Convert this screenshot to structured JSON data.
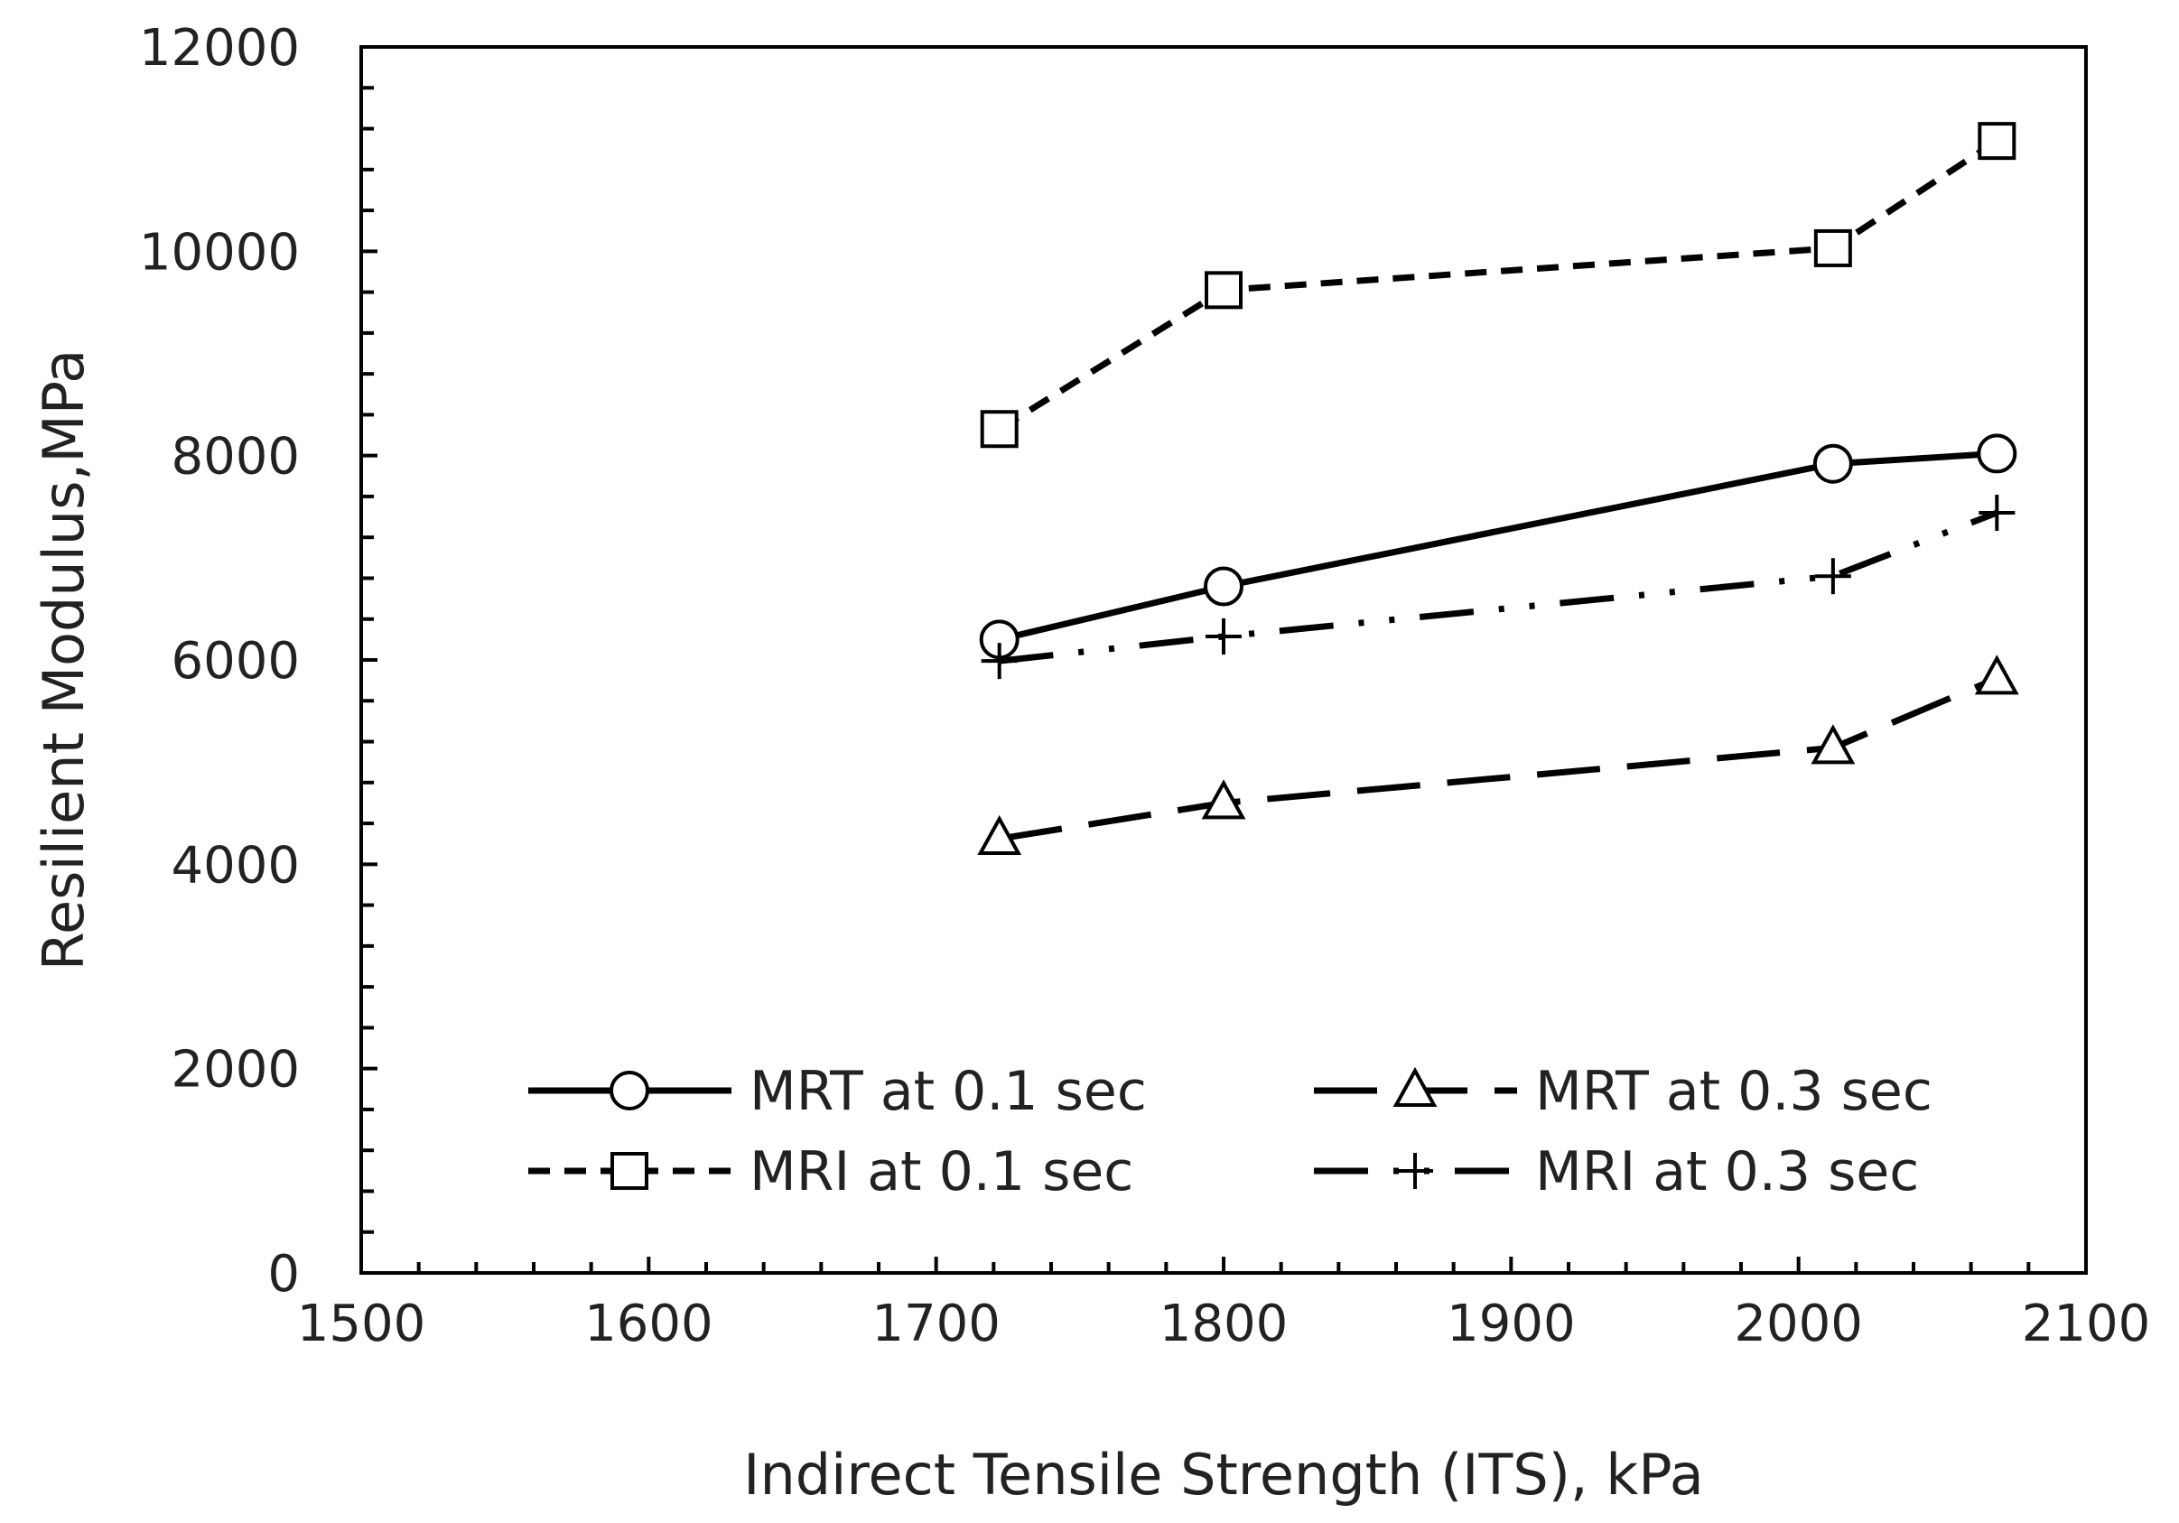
{
  "chart_data": {
    "type": "line",
    "title": "",
    "xlabel": "Indirect Tensile Strength (ITS), kPa",
    "ylabel": "Resilient Modulus,MPa",
    "xlim": [
      1500,
      2100
    ],
    "ylim": [
      0,
      12000
    ],
    "x_ticks": [
      "1500",
      "1600",
      "1700",
      "1800",
      "1900",
      "2000",
      "2100"
    ],
    "y_ticks": [
      "0",
      "2000",
      "4000",
      "6000",
      "8000",
      "10000",
      "12000"
    ],
    "grid": false,
    "legend_position": "bottom-inside",
    "x": [
      1722,
      1800,
      2012,
      2069
    ],
    "series": [
      {
        "name": "MRT at 0.1 sec",
        "marker": "circle",
        "line": "solid",
        "values": [
          6200,
          6720,
          7920,
          8020
        ]
      },
      {
        "name": "MRT at 0.3 sec",
        "marker": "triangle",
        "line": "long-dash",
        "values": [
          4250,
          4600,
          5140,
          5820
        ]
      },
      {
        "name": "MRI at 0.1 sec",
        "marker": "square",
        "line": "short-dash",
        "values": [
          8260,
          9620,
          10030,
          11080
        ]
      },
      {
        "name": "MRI at 0.3 sec",
        "marker": "plus",
        "line": "dash-dot-dot",
        "values": [
          5990,
          6230,
          6820,
          7440
        ]
      }
    ],
    "color": "#000000"
  }
}
